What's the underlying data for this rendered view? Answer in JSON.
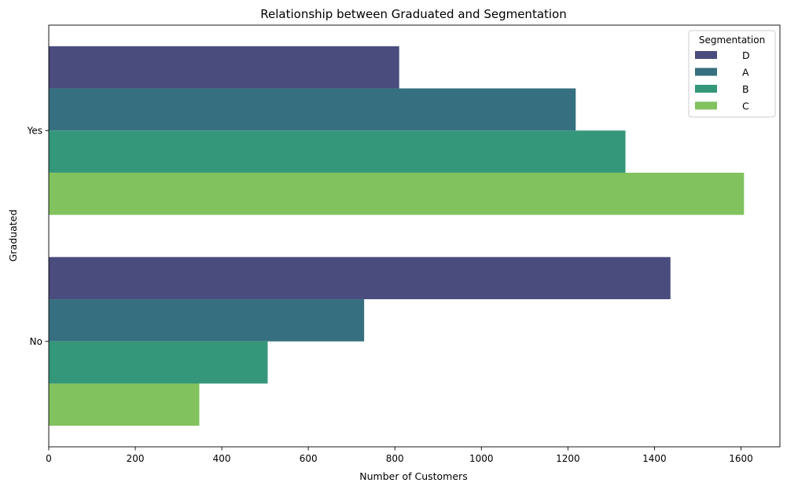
{
  "chart_data": {
    "type": "bar",
    "orientation": "horizontal",
    "title": "Relationship between Graduated and Segmentation",
    "xlabel": "Number of Customers",
    "ylabel": "Graduated",
    "categories": [
      "Yes",
      "No"
    ],
    "xlim": [
      0,
      1690
    ],
    "xticks": [
      0,
      200,
      400,
      600,
      800,
      1000,
      1200,
      1400,
      1600
    ],
    "grid": false,
    "legend": {
      "title": "Segmentation",
      "placement": "top-right"
    },
    "series": [
      {
        "name": "D",
        "color": "#4a4c7d",
        "values": [
          810,
          1437
        ]
      },
      {
        "name": "A",
        "color": "#366f7f",
        "values": [
          1218,
          729
        ]
      },
      {
        "name": "B",
        "color": "#35977a",
        "values": [
          1333,
          506
        ]
      },
      {
        "name": "C",
        "color": "#81c25f",
        "values": [
          1607,
          348
        ]
      }
    ]
  }
}
